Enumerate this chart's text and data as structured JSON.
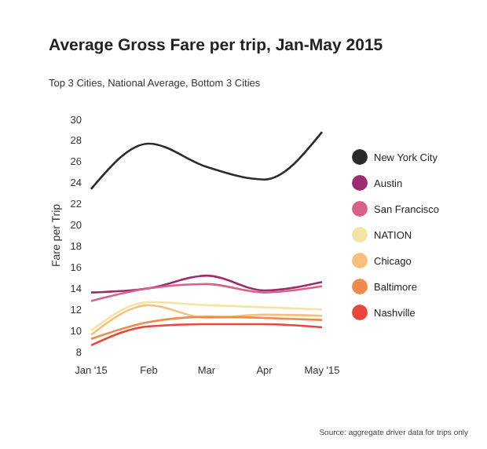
{
  "chart_data": {
    "type": "line",
    "title": "Average Gross Fare per trip, Jan-May 2015",
    "subtitle": "Top 3 Cities, National Average, Bottom 3 Cities",
    "ylabel": "Fare per Trip",
    "annotations": [
      "Source: aggregate driver data for trips only"
    ],
    "categories": [
      "Jan '15",
      "Feb",
      "Mar",
      "Apr",
      "May '15"
    ],
    "series": [
      {
        "name": "New York City",
        "color": "#2b2b2b",
        "values": [
          23.4,
          27.7,
          25.5,
          24.3,
          28.8
        ]
      },
      {
        "name": "Austin",
        "color": "#9b2d6e",
        "values": [
          13.6,
          14,
          15.2,
          13.8,
          14.6
        ]
      },
      {
        "name": "San Francisco",
        "color": "#d9608a",
        "values": [
          12.8,
          14,
          14.4,
          13.6,
          14.2
        ]
      },
      {
        "name": "NATION",
        "color": "#f3e4a6",
        "values": [
          10,
          12.7,
          12.4,
          12.2,
          12
        ]
      },
      {
        "name": "Chicago",
        "color": "#f6c07a",
        "values": [
          9.6,
          12.4,
          11.2,
          11.5,
          11.4
        ]
      },
      {
        "name": "Baltimore",
        "color": "#f08a4b",
        "values": [
          9.2,
          10.8,
          11.3,
          11.2,
          11
        ]
      },
      {
        "name": "Nashville",
        "color": "#e8473a",
        "values": [
          8.6,
          10.4,
          10.6,
          10.6,
          10.3
        ]
      }
    ],
    "ylim": [
      8,
      30
    ],
    "yticks": [
      8,
      10,
      12,
      14,
      16,
      18,
      20,
      22,
      24,
      26,
      28,
      30
    ],
    "grid": false,
    "legend": "right",
    "marker": "none",
    "line_style": "solid"
  }
}
